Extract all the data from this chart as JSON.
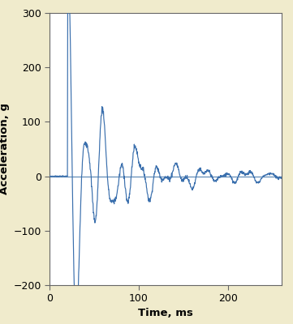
{
  "xlabel": "Time, ms",
  "ylabel": "Acceleration, g",
  "xlim": [
    0,
    260
  ],
  "ylim": [
    -200,
    300
  ],
  "xticks": [
    0,
    100,
    200
  ],
  "yticks": [
    -200,
    -100,
    0,
    100,
    200,
    300
  ],
  "line_color": "#3a6fad",
  "background_color": "#f0ebcc",
  "axes_background": "#ffffff",
  "figure_size": [
    3.61,
    4.0
  ],
  "dpi": 100,
  "zero_line_color": "#5080b0"
}
